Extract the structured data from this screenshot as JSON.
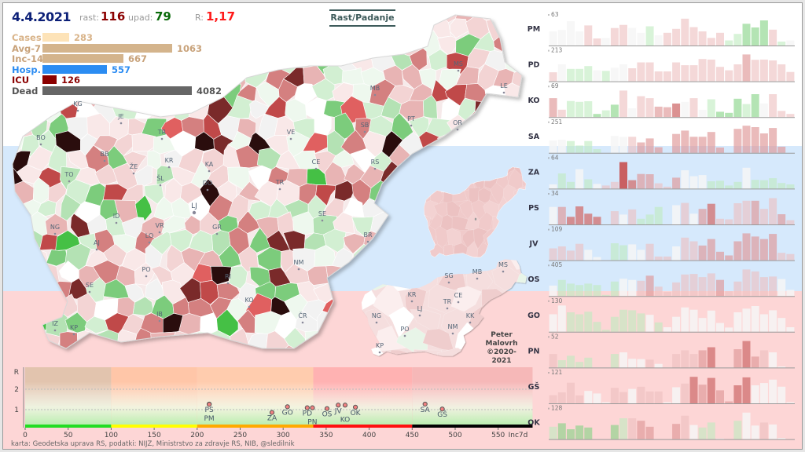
{
  "header": {
    "date": "4.4.2021",
    "rast_label": "rast:",
    "rast": "116",
    "upad_label": "upad:",
    "upad": "79",
    "r_label": "R:",
    "r": "1,17",
    "mode_button": "Rast/Padanje",
    "colors": {
      "date": "#0b1f77",
      "rast": "#8b0000",
      "upad": "#0a6b0a",
      "r": "#ff1a1a"
    }
  },
  "stats": [
    {
      "label": "Cases",
      "value": "283",
      "color": "#fde3b8",
      "label_color": "#d9b48a"
    },
    {
      "label": "Avg-7",
      "value": "1063",
      "color": "#d4b48c",
      "label_color": "#c8a27a"
    },
    {
      "label": "Inc-14",
      "value": "667",
      "color": "#d4b48c",
      "label_color": "#c8a27a"
    },
    {
      "label": "Hosp.",
      "value": "557",
      "color": "#2b8cf2",
      "label_color": "#2b8cf2"
    },
    {
      "label": "ICU",
      "value": "126",
      "color": "#8b0000",
      "label_color": "#8b0000"
    },
    {
      "label": "Dead",
      "value": "4082",
      "color": "#666666",
      "label_color": "#555555"
    }
  ],
  "map": {
    "labels": [
      "KG",
      "JE",
      "TR",
      "BO",
      "BB",
      "ŽE",
      "KR",
      "KA",
      "TO",
      "ŠL",
      "DO",
      "LJ",
      "ID",
      "NG",
      "VR",
      "GR",
      "LO",
      "AJ",
      "PO",
      "SE",
      "RI",
      "KO",
      "IB",
      "IZ",
      "KP",
      "ČR",
      "NM",
      "BR",
      "SE",
      "TR",
      "CE",
      "RS",
      "VE",
      "SB",
      "PT",
      "OR",
      "MB",
      "MS",
      "LE"
    ],
    "palette": {
      "strong_fall": "#44c044",
      "fall": "#b4e2b4",
      "neutral": "#f9f3f3",
      "rise": "#e8b4b4",
      "strong_rise": "#c04848",
      "extreme_rise": "#2a0c0c"
    }
  },
  "regions_map": {
    "labels": [
      "MS",
      "MB",
      "SG",
      "KR",
      "CE",
      "TR",
      "LJ",
      "NG",
      "KK",
      "NM",
      "PO",
      "KP"
    ]
  },
  "author": {
    "line1": "Peter",
    "line2": "Malovrh",
    "line3": "©2020-2021"
  },
  "footer": "karta: Geodetska uprava RS,  podatki: NIJZ, Ministrstvo za zdravje RS, NIB, @sledilnik",
  "chart_data": [
    {
      "type": "scatter",
      "xlabel": "Inc7d",
      "ylabel": "R",
      "xlim": [
        0,
        590
      ],
      "ylim": [
        0,
        2.8
      ],
      "x_ticks": [
        0,
        50,
        100,
        150,
        200,
        250,
        300,
        350,
        400,
        450,
        500,
        550
      ],
      "y_ticks": [
        1,
        2
      ],
      "grid": "horizontal dashed",
      "zones": [
        {
          "from": 0,
          "to": 100,
          "color": "#22dd22"
        },
        {
          "from": 100,
          "to": 200,
          "color": "#ffff00"
        },
        {
          "from": 200,
          "to": 335,
          "color": "#ffaa00"
        },
        {
          "from": 335,
          "to": 450,
          "color": "#ff1010"
        },
        {
          "from": 450,
          "to": 590,
          "color": "#000000"
        }
      ],
      "points": [
        {
          "label": "PS",
          "x": 214,
          "y": 1.27
        },
        {
          "label": "PM",
          "x": 214,
          "y": 1.26
        },
        {
          "label": "ZA",
          "x": 287,
          "y": 0.86
        },
        {
          "label": "GO",
          "x": 305,
          "y": 1.14
        },
        {
          "label": "PD",
          "x": 328,
          "y": 1.09
        },
        {
          "label": "PN",
          "x": 334,
          "y": 1.09
        },
        {
          "label": "OS",
          "x": 351,
          "y": 1.05
        },
        {
          "label": "JV",
          "x": 364,
          "y": 1.22
        },
        {
          "label": "KO",
          "x": 372,
          "y": 1.22
        },
        {
          "label": "OK",
          "x": 384,
          "y": 1.12
        },
        {
          "label": "SA",
          "x": 465,
          "y": 1.27
        },
        {
          "label": "GŠ",
          "x": 485,
          "y": 1.03
        }
      ]
    },
    {
      "type": "bar",
      "values_unit": "percent of panel max",
      "tint_scale": "-2 strong fall … 0 neutral … 4 strong rise",
      "panels": [
        {
          "name": "PM",
          "max": "63",
          "values": [
            50,
            55,
            86,
            50,
            71,
            25,
            27,
            62,
            73,
            62,
            45,
            68,
            36,
            45,
            59,
            95,
            65,
            50,
            27,
            45,
            18,
            41,
            77,
            64,
            89,
            56,
            14,
            18
          ],
          "tints": [
            0,
            0,
            0,
            0,
            1,
            1,
            0,
            1,
            1,
            0,
            0,
            -1,
            0,
            1,
            1,
            1,
            1,
            1,
            1,
            1,
            -1,
            -1,
            -2,
            -2,
            -2,
            1,
            -1,
            0
          ]
        },
        {
          "name": "PD",
          "max": "213",
          "values": [
            32,
            60,
            44,
            44,
            54,
            39,
            37,
            48,
            60,
            46,
            67,
            67,
            35,
            35,
            67,
            57,
            57,
            79,
            77,
            51,
            39,
            60,
            95,
            76,
            77,
            74,
            60,
            33
          ],
          "tints": [
            1,
            0,
            -1,
            -1,
            -1,
            0,
            -1,
            0,
            0,
            1,
            1,
            1,
            1,
            1,
            1,
            1,
            1,
            1,
            1,
            1,
            1,
            1,
            2,
            1,
            1,
            1,
            1,
            1
          ]
        },
        {
          "name": "KO",
          "max": "69",
          "values": [
            67,
            26,
            57,
            54,
            56,
            11,
            24,
            44,
            94,
            31,
            74,
            67,
            37,
            35,
            48,
            54,
            67,
            26,
            63,
            19,
            15,
            65,
            46,
            81,
            48,
            81,
            22,
            11
          ],
          "tints": [
            2,
            1,
            -1,
            -1,
            -1,
            -2,
            -1,
            -2,
            1,
            0,
            1,
            1,
            2,
            2,
            3,
            0,
            1,
            0,
            -1,
            -2,
            -2,
            -2,
            -1,
            -2,
            0,
            1,
            1,
            1
          ]
        },
        {
          "name": "SA",
          "max": "251",
          "values": [
            44,
            46,
            42,
            26,
            42,
            13,
            0,
            60,
            57,
            57,
            37,
            51,
            20,
            0,
            67,
            79,
            57,
            57,
            74,
            19,
            0,
            85,
            96,
            91,
            69,
            88,
            22,
            0
          ],
          "tints": [
            0,
            0,
            -1,
            -1,
            -1,
            -1,
            0,
            0,
            0,
            1,
            2,
            2,
            2,
            0,
            2,
            2,
            2,
            2,
            2,
            2,
            0,
            2,
            2,
            2,
            2,
            2,
            2,
            0
          ]
        },
        {
          "name": "ZA",
          "max": "64",
          "values": [
            15,
            54,
            24,
            69,
            33,
            17,
            11,
            24,
            94,
            30,
            52,
            51,
            19,
            7,
            39,
            65,
            44,
            48,
            26,
            28,
            11,
            24,
            74,
            31,
            30,
            37,
            20,
            15
          ],
          "tints": [
            0,
            -1,
            -1,
            0,
            -1,
            0,
            1,
            1,
            4,
            3,
            2,
            2,
            1,
            1,
            2,
            0,
            0,
            0,
            -1,
            -1,
            -1,
            -1,
            0,
            -1,
            -1,
            -1,
            -1,
            -1
          ]
        },
        {
          "name": "PS",
          "max": "34",
          "values": [
            62,
            62,
            27,
            64,
            38,
            27,
            0,
            47,
            35,
            53,
            20,
            35,
            62,
            0,
            68,
            76,
            38,
            55,
            73,
            20,
            18,
            75,
            84,
            84,
            55,
            93,
            36,
            15
          ],
          "tints": [
            0,
            2,
            3,
            3,
            3,
            3,
            0,
            1,
            0,
            1,
            -1,
            -1,
            -1,
            0,
            0,
            1,
            0,
            2,
            3,
            1,
            1,
            1,
            1,
            2,
            1,
            1,
            2,
            1
          ]
        },
        {
          "name": "JV",
          "max": "109",
          "values": [
            42,
            49,
            34,
            58,
            37,
            11,
            0,
            60,
            53,
            56,
            37,
            58,
            13,
            13,
            49,
            80,
            67,
            52,
            75,
            30,
            17,
            67,
            95,
            84,
            75,
            93,
            26,
            22
          ],
          "tints": [
            1,
            1,
            1,
            1,
            0,
            0,
            0,
            -1,
            -1,
            0,
            0,
            1,
            1,
            1,
            0,
            1,
            1,
            2,
            2,
            2,
            2,
            2,
            2,
            2,
            2,
            2,
            1,
            1
          ]
        },
        {
          "name": "OS",
          "max": "405",
          "values": [
            37,
            57,
            44,
            39,
            44,
            39,
            4,
            51,
            61,
            57,
            54,
            72,
            33,
            15,
            48,
            76,
            78,
            67,
            80,
            57,
            17,
            51,
            94,
            87,
            67,
            69,
            60,
            22
          ],
          "tints": [
            0,
            -1,
            -1,
            -1,
            -1,
            -1,
            -1,
            -1,
            0,
            0,
            1,
            2,
            1,
            1,
            1,
            1,
            1,
            1,
            1,
            2,
            1,
            1,
            1,
            1,
            1,
            1,
            0,
            0
          ]
        },
        {
          "name": "GO",
          "max": "130",
          "values": [
            62,
            93,
            69,
            62,
            71,
            35,
            7,
            53,
            78,
            76,
            65,
            60,
            33,
            16,
            53,
            86,
            78,
            49,
            75,
            31,
            15,
            69,
            82,
            91,
            62,
            76,
            49,
            16
          ],
          "tints": [
            0,
            0,
            -1,
            -1,
            -1,
            -1,
            -1,
            -1,
            -1,
            -1,
            -1,
            0,
            -1,
            0,
            0,
            0,
            0,
            0,
            0,
            0,
            0,
            0,
            0,
            0,
            0,
            0,
            0,
            0
          ]
        },
        {
          "name": "PN",
          "max": "52",
          "values": [
            48,
            26,
            42,
            20,
            35,
            0,
            0,
            48,
            54,
            31,
            30,
            28,
            13,
            0,
            48,
            61,
            48,
            61,
            72,
            0,
            0,
            65,
            94,
            39,
            61,
            54,
            4,
            0
          ],
          "tints": [
            1,
            -1,
            -1,
            -1,
            -1,
            0,
            0,
            -1,
            0,
            0,
            0,
            1,
            0,
            0,
            1,
            1,
            1,
            2,
            3,
            0,
            0,
            2,
            3,
            2,
            1,
            0,
            0,
            0
          ]
        },
        {
          "name": "GŠ",
          "max": "121",
          "values": [
            29,
            39,
            73,
            28,
            44,
            35,
            4,
            55,
            40,
            51,
            59,
            42,
            42,
            4,
            57,
            70,
            94,
            66,
            90,
            46,
            7,
            64,
            92,
            64,
            72,
            84,
            59,
            4
          ],
          "tints": [
            1,
            1,
            1,
            1,
            0,
            0,
            0,
            1,
            1,
            0,
            1,
            1,
            1,
            0,
            0,
            1,
            3,
            2,
            3,
            2,
            2,
            3,
            3,
            0,
            0,
            0,
            0,
            0
          ]
        },
        {
          "name": "OK",
          "max": "128",
          "values": [
            44,
            56,
            35,
            48,
            41,
            0,
            0,
            50,
            74,
            74,
            65,
            44,
            0,
            0,
            54,
            83,
            50,
            41,
            59,
            2,
            0,
            65,
            94,
            48,
            59,
            52,
            4,
            0
          ],
          "tints": [
            -1,
            -2,
            -2,
            -2,
            -2,
            0,
            0,
            -2,
            -1,
            1,
            2,
            2,
            0,
            0,
            2,
            1,
            0,
            -1,
            -1,
            0,
            0,
            -1,
            0,
            0,
            1,
            0,
            0,
            0
          ]
        }
      ]
    }
  ]
}
